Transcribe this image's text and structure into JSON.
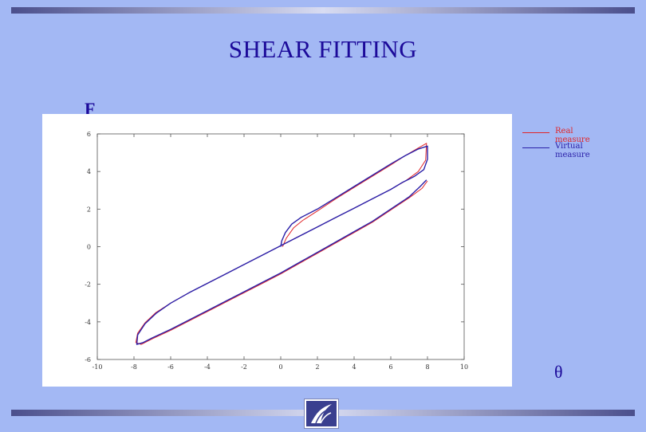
{
  "page": {
    "title": "SHEAR FITTING"
  },
  "axes_symbols": {
    "y": "F",
    "x": "θ"
  },
  "colors": {
    "background": "#a3b8f4",
    "title": "#1c0a9a",
    "real": "#e0262a",
    "virtual": "#2a1fa8"
  },
  "chart_data": {
    "type": "line",
    "title": "",
    "xlabel": "",
    "ylabel": "",
    "xlim": [
      -10,
      10
    ],
    "ylim": [
      -6,
      6
    ],
    "xticks": [
      -10,
      -8,
      -6,
      -4,
      -2,
      0,
      2,
      4,
      6,
      8,
      10
    ],
    "yticks": [
      6,
      4,
      2,
      0,
      -2,
      -4,
      -6
    ],
    "grid": false,
    "legend_position": "top-right",
    "series": [
      {
        "name": "Real measure",
        "color": "#e0262a",
        "x": [
          0.1,
          0.3,
          0.7,
          1.2,
          2,
          3,
          4,
          5,
          6,
          6.8,
          7.5,
          7.95,
          7.9,
          7.5,
          6.8,
          6,
          5,
          4,
          3,
          2,
          1,
          0,
          -1,
          -2,
          -3,
          -4,
          -5,
          -6,
          -6.8,
          -7.4,
          -7.8,
          -7.9,
          -7.6,
          -7.0,
          -6,
          -5,
          -4,
          -3,
          -2,
          -1,
          0,
          1,
          2,
          3,
          4,
          5,
          6,
          7,
          7.7,
          8.0
        ],
        "y": [
          0.0,
          0.45,
          1.0,
          1.4,
          1.9,
          2.55,
          3.15,
          3.75,
          4.35,
          4.85,
          5.25,
          5.5,
          4.6,
          4.0,
          3.5,
          3.05,
          2.55,
          2.05,
          1.55,
          1.05,
          0.55,
          0.05,
          -0.45,
          -0.95,
          -1.45,
          -1.95,
          -2.45,
          -3.0,
          -3.5,
          -4.05,
          -4.6,
          -5.1,
          -5.2,
          -4.9,
          -4.45,
          -3.95,
          -3.45,
          -2.95,
          -2.45,
          -1.95,
          -1.45,
          -0.9,
          -0.35,
          0.2,
          0.75,
          1.3,
          1.95,
          2.6,
          3.1,
          3.5
        ]
      },
      {
        "name": "Virtual measure",
        "color": "#2a1fa8",
        "x": [
          0.0,
          0.05,
          0.25,
          0.6,
          1.1,
          2,
          3,
          4,
          5,
          6,
          6.8,
          7.5,
          8.0,
          8.0,
          7.8,
          7.3,
          6.6,
          6,
          5,
          4,
          3,
          2,
          1,
          0,
          -1,
          -2,
          -3,
          -4,
          -5,
          -6,
          -6.8,
          -7.4,
          -7.8,
          -7.85,
          -7.5,
          -7.0,
          -6,
          -5,
          -4,
          -3,
          -2,
          -1,
          0,
          1,
          2,
          3,
          4,
          5,
          6,
          7,
          7.6,
          7.95
        ],
        "y": [
          0.0,
          0.3,
          0.75,
          1.2,
          1.55,
          2.0,
          2.6,
          3.2,
          3.8,
          4.4,
          4.85,
          5.2,
          5.35,
          4.65,
          4.1,
          3.75,
          3.4,
          3.05,
          2.55,
          2.05,
          1.55,
          1.05,
          0.55,
          0.05,
          -0.45,
          -0.95,
          -1.45,
          -1.95,
          -2.45,
          -3.0,
          -3.55,
          -4.1,
          -4.7,
          -5.2,
          -5.1,
          -4.85,
          -4.4,
          -3.9,
          -3.4,
          -2.9,
          -2.4,
          -1.9,
          -1.4,
          -0.85,
          -0.3,
          0.25,
          0.8,
          1.35,
          2.0,
          2.65,
          3.2,
          3.55
        ]
      }
    ]
  }
}
